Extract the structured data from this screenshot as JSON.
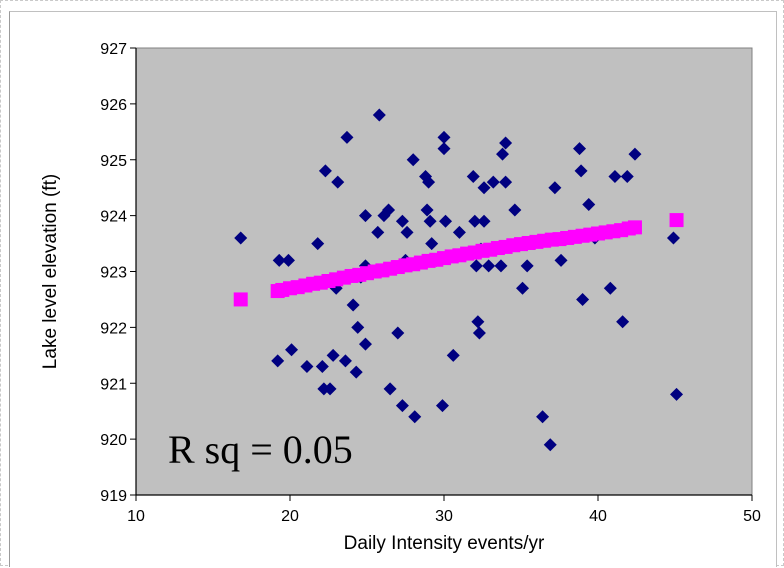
{
  "chart_data": {
    "type": "scatter",
    "title": "",
    "xlabel": "Daily Intensity events/yr",
    "ylabel": "Lake level elevation (ft)",
    "xlim": [
      10,
      50
    ],
    "ylim": [
      919,
      927
    ],
    "x_ticks": [
      "10",
      "20",
      "30",
      "40",
      "50"
    ],
    "y_ticks": [
      "919",
      "920",
      "921",
      "922",
      "923",
      "924",
      "925",
      "926",
      "927"
    ],
    "grid": false,
    "plot_background": "#c0c0c0",
    "annotation": "R sq = 0.05",
    "series": [
      {
        "marker": "diamond",
        "color": "#000080",
        "points": [
          [
            16.8,
            923.6
          ],
          [
            19.2,
            921.4
          ],
          [
            19.3,
            923.2
          ],
          [
            19.9,
            923.2
          ],
          [
            20.1,
            921.6
          ],
          [
            21.1,
            921.3
          ],
          [
            21.8,
            923.5
          ],
          [
            22.1,
            921.3
          ],
          [
            22.2,
            920.9
          ],
          [
            22.3,
            924.8
          ],
          [
            22.6,
            920.9
          ],
          [
            22.8,
            921.5
          ],
          [
            23.0,
            922.7
          ],
          [
            23.1,
            924.6
          ],
          [
            23.5,
            922.9
          ],
          [
            23.6,
            921.4
          ],
          [
            23.7,
            925.4
          ],
          [
            24.1,
            922.4
          ],
          [
            24.3,
            921.2
          ],
          [
            24.4,
            922.0
          ],
          [
            24.6,
            922.9
          ],
          [
            24.9,
            924.0
          ],
          [
            24.9,
            923.1
          ],
          [
            24.9,
            921.7
          ],
          [
            25.7,
            923.7
          ],
          [
            25.8,
            925.8
          ],
          [
            26.1,
            924.0
          ],
          [
            26.4,
            924.1
          ],
          [
            26.5,
            920.9
          ],
          [
            27.0,
            921.9
          ],
          [
            27.3,
            920.6
          ],
          [
            27.3,
            923.9
          ],
          [
            27.5,
            923.2
          ],
          [
            27.6,
            923.7
          ],
          [
            28.0,
            925.0
          ],
          [
            28.1,
            920.4
          ],
          [
            28.8,
            924.7
          ],
          [
            28.9,
            924.1
          ],
          [
            29.0,
            924.6
          ],
          [
            29.1,
            923.9
          ],
          [
            29.2,
            923.5
          ],
          [
            29.5,
            923.2
          ],
          [
            29.9,
            920.6
          ],
          [
            30.0,
            925.4
          ],
          [
            30.0,
            925.2
          ],
          [
            30.1,
            923.9
          ],
          [
            30.6,
            921.5
          ],
          [
            31.0,
            923.7
          ],
          [
            31.9,
            924.7
          ],
          [
            32.0,
            923.9
          ],
          [
            32.1,
            923.1
          ],
          [
            32.2,
            922.1
          ],
          [
            32.3,
            921.9
          ],
          [
            32.4,
            923.4
          ],
          [
            32.6,
            923.9
          ],
          [
            32.6,
            924.5
          ],
          [
            32.9,
            923.1
          ],
          [
            33.2,
            924.6
          ],
          [
            33.4,
            923.4
          ],
          [
            33.7,
            923.1
          ],
          [
            33.8,
            925.1
          ],
          [
            34.0,
            925.3
          ],
          [
            34.0,
            924.6
          ],
          [
            34.6,
            924.1
          ],
          [
            35.1,
            922.7
          ],
          [
            35.4,
            923.1
          ],
          [
            36.4,
            920.4
          ],
          [
            36.9,
            919.9
          ],
          [
            37.2,
            924.5
          ],
          [
            37.6,
            923.2
          ],
          [
            38.0,
            923.6
          ],
          [
            38.8,
            925.2
          ],
          [
            38.9,
            924.8
          ],
          [
            39.0,
            922.5
          ],
          [
            39.4,
            924.2
          ],
          [
            39.8,
            923.6
          ],
          [
            40.8,
            922.7
          ],
          [
            41.1,
            924.7
          ],
          [
            41.6,
            922.1
          ],
          [
            41.9,
            924.7
          ],
          [
            42.4,
            925.1
          ],
          [
            44.9,
            923.6
          ],
          [
            45.1,
            920.8
          ]
        ]
      },
      {
        "marker": "square",
        "color": "#ff00ff",
        "points": [
          [
            16.8,
            922.5
          ],
          [
            19.2,
            922.65
          ],
          [
            19.5,
            922.67
          ],
          [
            20.0,
            922.7
          ],
          [
            20.5,
            922.72
          ],
          [
            21.0,
            922.75
          ],
          [
            21.5,
            922.78
          ],
          [
            22.0,
            922.8
          ],
          [
            22.5,
            922.83
          ],
          [
            23.0,
            922.86
          ],
          [
            23.5,
            922.89
          ],
          [
            24.0,
            922.92
          ],
          [
            24.5,
            922.94
          ],
          [
            25.0,
            922.97
          ],
          [
            25.5,
            923.0
          ],
          [
            26.0,
            923.02
          ],
          [
            26.5,
            923.05
          ],
          [
            27.0,
            923.08
          ],
          [
            27.5,
            923.11
          ],
          [
            28.0,
            923.13
          ],
          [
            28.5,
            923.16
          ],
          [
            29.0,
            923.19
          ],
          [
            29.5,
            923.21
          ],
          [
            30.0,
            923.24
          ],
          [
            30.5,
            923.27
          ],
          [
            31.0,
            923.29
          ],
          [
            31.5,
            923.32
          ],
          [
            32.0,
            923.34
          ],
          [
            32.5,
            923.37
          ],
          [
            33.0,
            923.39
          ],
          [
            33.5,
            923.42
          ],
          [
            34.0,
            923.44
          ],
          [
            34.5,
            923.47
          ],
          [
            35.0,
            923.49
          ],
          [
            35.5,
            923.51
          ],
          [
            36.0,
            923.53
          ],
          [
            36.5,
            923.55
          ],
          [
            37.0,
            923.57
          ],
          [
            37.5,
            923.58
          ],
          [
            38.0,
            923.6
          ],
          [
            38.5,
            923.62
          ],
          [
            39.0,
            923.64
          ],
          [
            39.5,
            923.66
          ],
          [
            40.0,
            923.68
          ],
          [
            40.5,
            923.7
          ],
          [
            41.0,
            923.72
          ],
          [
            41.5,
            923.74
          ],
          [
            42.0,
            923.77
          ],
          [
            42.4,
            923.79
          ],
          [
            45.1,
            923.92
          ]
        ]
      }
    ]
  }
}
